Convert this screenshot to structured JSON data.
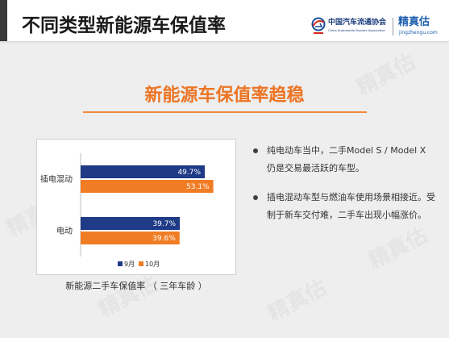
{
  "header": {
    "title": "不同类型新能源车保值率",
    "org_logo": {
      "icon": "cada-emblem-icon",
      "name_cn": "中国汽车流通协会",
      "name_en": "China Automobile Dealers Association"
    },
    "brand_logo": {
      "name": "精真估",
      "url_text": "jingzhengu.com"
    }
  },
  "subtitle": "新能源车保值率趋稳",
  "bullets": [
    {
      "lines": [
        "纯电动车当中，二手Model S / Model X",
        "仍是交易最活跃的车型。"
      ]
    },
    {
      "lines": [
        "插电混动车型与燃油车使用场景相接近。受",
        "制于新车交付难，二手车出现小幅涨价。"
      ]
    }
  ],
  "watermark": "精真估",
  "colors": {
    "accent_orange": "#ec7424",
    "brand_blue": "#1d5fae",
    "org_blue": "#1b3c7d",
    "background": "#eeeeee",
    "header_background": "#ffffff"
  },
  "chart_data": {
    "type": "bar",
    "orientation": "horizontal",
    "categories": [
      "插电混动",
      "电动"
    ],
    "series": [
      {
        "name": "9月",
        "values": [
          49.7,
          39.7
        ],
        "color": "#1f3b87"
      },
      {
        "name": "10月",
        "values": [
          53.1,
          39.6
        ],
        "color": "#f07c24"
      }
    ],
    "unit": "%",
    "xlim": [
      0,
      60
    ],
    "grid": false,
    "legend": "bottom",
    "data_labels": true,
    "caption": "新能源二手车保值率 （ 三年车龄 ）"
  }
}
